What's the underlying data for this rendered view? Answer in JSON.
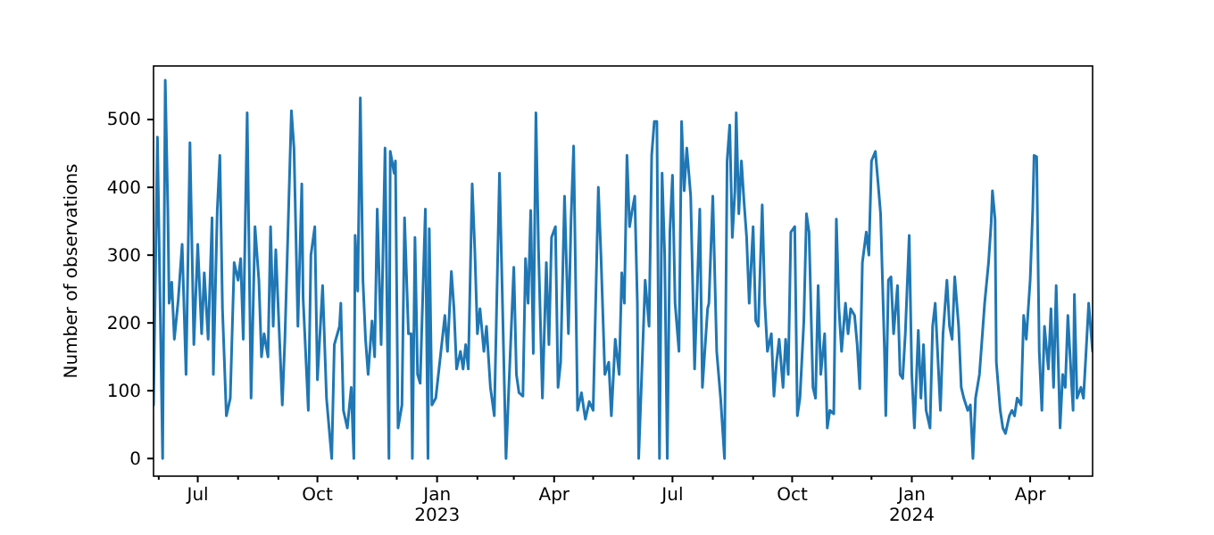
{
  "chart_data": {
    "type": "line",
    "ylabel": "Number of observations",
    "xlim": [
      "2022-05-28",
      "2024-05-19"
    ],
    "ylim": [
      -26,
      579
    ],
    "yticks": [
      0,
      100,
      200,
      300,
      400,
      500
    ],
    "xticks": [
      {
        "value": "2022-06-01",
        "label": null
      },
      {
        "value": "2022-07-01",
        "label": "Jul"
      },
      {
        "value": "2022-08-01",
        "label": null
      },
      {
        "value": "2022-09-01",
        "label": null
      },
      {
        "value": "2022-10-01",
        "label": "Oct"
      },
      {
        "value": "2022-11-01",
        "label": null
      },
      {
        "value": "2022-12-01",
        "label": null
      },
      {
        "value": "2023-01-01",
        "label": "Jan\n2023"
      },
      {
        "value": "2023-02-01",
        "label": null
      },
      {
        "value": "2023-03-01",
        "label": null
      },
      {
        "value": "2023-04-01",
        "label": "Apr"
      },
      {
        "value": "2023-05-01",
        "label": null
      },
      {
        "value": "2023-06-01",
        "label": null
      },
      {
        "value": "2023-07-01",
        "label": "Jul"
      },
      {
        "value": "2023-08-01",
        "label": null
      },
      {
        "value": "2023-09-01",
        "label": null
      },
      {
        "value": "2023-10-01",
        "label": "Oct"
      },
      {
        "value": "2023-11-01",
        "label": null
      },
      {
        "value": "2023-12-01",
        "label": null
      },
      {
        "value": "2024-01-01",
        "label": "Jan\n2024"
      },
      {
        "value": "2024-02-01",
        "label": null
      },
      {
        "value": "2024-03-01",
        "label": null
      },
      {
        "value": "2024-04-01",
        "label": "Apr"
      },
      {
        "value": "2024-05-01",
        "label": null
      }
    ],
    "grid": false,
    "line_style": "solid",
    "series": [
      {
        "color": "#1f77b4",
        "x": [
          "2022-05-28",
          "2022-05-31",
          "2022-06-04",
          "2022-06-06",
          "2022-06-08",
          "2022-06-09",
          "2022-06-11",
          "2022-06-13",
          "2022-06-16",
          "2022-06-19",
          "2022-06-22",
          "2022-06-25",
          "2022-06-28",
          "2022-07-01",
          "2022-07-04",
          "2022-07-06",
          "2022-07-09",
          "2022-07-12",
          "2022-07-13",
          "2022-07-16",
          "2022-07-18",
          "2022-07-20",
          "2022-07-23",
          "2022-07-26",
          "2022-07-29",
          "2022-08-01",
          "2022-08-03",
          "2022-08-05",
          "2022-08-08",
          "2022-08-11",
          "2022-08-14",
          "2022-08-17",
          "2022-08-19",
          "2022-08-21",
          "2022-08-24",
          "2022-08-26",
          "2022-08-28",
          "2022-08-30",
          "2022-09-04",
          "2022-09-06",
          "2022-09-11",
          "2022-09-13",
          "2022-09-16",
          "2022-09-19",
          "2022-09-20",
          "2022-09-24",
          "2022-09-26",
          "2022-09-29",
          "2022-10-01",
          "2022-10-05",
          "2022-10-08",
          "2022-10-12",
          "2022-10-14",
          "2022-10-18",
          "2022-10-19",
          "2022-10-21",
          "2022-10-24",
          "2022-10-27",
          "2022-10-29",
          "2022-10-30",
          "2022-11-01",
          "2022-11-03",
          "2022-11-05",
          "2022-11-07",
          "2022-11-09",
          "2022-11-12",
          "2022-11-14",
          "2022-11-16",
          "2022-11-19",
          "2022-11-22",
          "2022-11-25",
          "2022-11-26",
          "2022-11-29",
          "2022-11-30",
          "2022-12-02",
          "2022-12-05",
          "2022-12-07",
          "2022-12-10",
          "2022-12-12",
          "2022-12-13",
          "2022-12-15",
          "2022-12-17",
          "2022-12-19",
          "2022-12-23",
          "2022-12-25",
          "2022-12-26",
          "2022-12-28",
          "2022-12-31",
          "2023-01-05",
          "2023-01-07",
          "2023-01-09",
          "2023-01-12",
          "2023-01-14",
          "2023-01-16",
          "2023-01-19",
          "2023-01-21",
          "2023-01-23",
          "2023-01-25",
          "2023-01-28",
          "2023-01-30",
          "2023-02-01",
          "2023-02-03",
          "2023-02-06",
          "2023-02-08",
          "2023-02-11",
          "2023-02-14",
          "2023-02-18",
          "2023-02-20",
          "2023-02-23",
          "2023-02-25",
          "2023-03-01",
          "2023-03-03",
          "2023-03-05",
          "2023-03-08",
          "2023-03-10",
          "2023-03-12",
          "2023-03-14",
          "2023-03-16",
          "2023-03-18",
          "2023-03-20",
          "2023-03-23",
          "2023-03-26",
          "2023-03-28",
          "2023-03-30",
          "2023-04-02",
          "2023-04-04",
          "2023-04-06",
          "2023-04-09",
          "2023-04-12",
          "2023-04-14",
          "2023-04-16",
          "2023-04-19",
          "2023-04-22",
          "2023-04-25",
          "2023-04-28",
          "2023-05-01",
          "2023-05-05",
          "2023-05-07",
          "2023-05-10",
          "2023-05-13",
          "2023-05-15",
          "2023-05-18",
          "2023-05-21",
          "2023-05-23",
          "2023-05-25",
          "2023-05-27",
          "2023-05-29",
          "2023-05-31",
          "2023-06-02",
          "2023-06-04",
          "2023-06-05",
          "2023-06-08",
          "2023-06-10",
          "2023-06-13",
          "2023-06-15",
          "2023-06-17",
          "2023-06-19",
          "2023-06-21",
          "2023-06-23",
          "2023-06-25",
          "2023-06-27",
          "2023-06-29",
          "2023-07-01",
          "2023-07-03",
          "2023-07-06",
          "2023-07-08",
          "2023-07-10",
          "2023-07-12",
          "2023-07-15",
          "2023-07-18",
          "2023-07-22",
          "2023-07-24",
          "2023-07-28",
          "2023-07-29",
          "2023-08-01",
          "2023-08-04",
          "2023-08-07",
          "2023-08-10",
          "2023-08-12",
          "2023-08-14",
          "2023-08-16",
          "2023-08-18",
          "2023-08-19",
          "2023-08-21",
          "2023-08-23",
          "2023-08-25",
          "2023-08-27",
          "2023-08-29",
          "2023-09-01",
          "2023-09-03",
          "2023-09-05",
          "2023-09-08",
          "2023-09-10",
          "2023-09-12",
          "2023-09-15",
          "2023-09-17",
          "2023-09-19",
          "2023-09-21",
          "2023-09-24",
          "2023-09-26",
          "2023-09-28",
          "2023-09-30",
          "2023-10-03",
          "2023-10-05",
          "2023-10-07",
          "2023-10-10",
          "2023-10-12",
          "2023-10-14",
          "2023-10-17",
          "2023-10-19",
          "2023-10-21",
          "2023-10-23",
          "2023-10-26",
          "2023-10-28",
          "2023-10-30",
          "2023-11-02",
          "2023-11-04",
          "2023-11-06",
          "2023-11-08",
          "2023-11-11",
          "2023-11-13",
          "2023-11-15",
          "2023-11-18",
          "2023-11-20",
          "2023-11-22",
          "2023-11-24",
          "2023-11-27",
          "2023-11-29",
          "2023-12-01",
          "2023-12-04",
          "2023-12-06",
          "2023-12-08",
          "2023-12-11",
          "2023-12-12",
          "2023-12-14",
          "2023-12-16",
          "2023-12-18",
          "2023-12-21",
          "2023-12-23",
          "2023-12-25",
          "2023-12-27",
          "2023-12-30",
          "2024-01-01",
          "2024-01-03",
          "2024-01-06",
          "2024-01-08",
          "2024-01-10",
          "2024-01-12",
          "2024-01-15",
          "2024-01-17",
          "2024-01-19",
          "2024-01-23",
          "2024-01-25",
          "2024-01-28",
          "2024-01-30",
          "2024-02-01",
          "2024-02-03",
          "2024-02-06",
          "2024-02-08",
          "2024-02-10",
          "2024-02-13",
          "2024-02-15",
          "2024-02-17",
          "2024-02-19",
          "2024-02-22",
          "2024-02-24",
          "2024-02-26",
          "2024-02-29",
          "2024-03-02",
          "2024-03-03",
          "2024-03-05",
          "2024-03-06",
          "2024-03-09",
          "2024-03-11",
          "2024-03-13",
          "2024-03-16",
          "2024-03-18",
          "2024-03-20",
          "2024-03-22",
          "2024-03-25",
          "2024-03-27",
          "2024-03-29",
          "2024-04-01",
          "2024-04-03",
          "2024-04-04",
          "2024-04-06",
          "2024-04-08",
          "2024-04-10",
          "2024-04-12",
          "2024-04-15",
          "2024-04-17",
          "2024-04-19",
          "2024-04-21",
          "2024-04-24",
          "2024-04-26",
          "2024-04-28",
          "2024-04-30",
          "2024-05-03",
          "2024-05-04",
          "2024-05-05",
          "2024-05-07",
          "2024-05-10",
          "2024-05-12",
          "2024-05-14",
          "2024-05-16",
          "2024-05-19"
        ],
        "values": [
          79,
          474,
          0,
          558,
          368,
          229,
          260,
          176,
          234,
          316,
          124,
          466,
          168,
          316,
          184,
          274,
          176,
          355,
          124,
          366,
          447,
          221,
          63,
          89,
          289,
          263,
          295,
          176,
          510,
          89,
          342,
          263,
          150,
          184,
          150,
          342,
          195,
          308,
          79,
          176,
          513,
          458,
          195,
          405,
          237,
          71,
          300,
          342,
          116,
          255,
          89,
          0,
          168,
          195,
          229,
          71,
          45,
          105,
          0,
          329,
          247,
          532,
          263,
          176,
          124,
          203,
          150,
          368,
          168,
          458,
          0,
          453,
          421,
          439,
          45,
          79,
          355,
          184,
          184,
          0,
          326,
          124,
          111,
          368,
          0,
          339,
          79,
          89,
          176,
          211,
          158,
          276,
          221,
          132,
          158,
          132,
          168,
          132,
          405,
          308,
          184,
          221,
          158,
          195,
          105,
          63,
          421,
          255,
          0,
          97,
          282,
          124,
          97,
          92,
          295,
          229,
          366,
          155,
          510,
          308,
          89,
          289,
          168,
          326,
          342,
          105,
          142,
          387,
          184,
          353,
          461,
          71,
          97,
          58,
          84,
          71,
          400,
          300,
          124,
          142,
          63,
          176,
          124,
          274,
          229,
          447,
          342,
          366,
          387,
          229,
          0,
          158,
          263,
          195,
          447,
          497,
          497,
          0,
          421,
          300,
          0,
          334,
          418,
          229,
          158,
          497,
          395,
          458,
          387,
          132,
          368,
          105,
          221,
          229,
          387,
          158,
          89,
          0,
          439,
          492,
          326,
          395,
          510,
          361,
          439,
          379,
          326,
          229,
          342,
          203,
          195,
          374,
          229,
          158,
          184,
          92,
          142,
          176,
          105,
          176,
          124,
          334,
          342,
          63,
          89,
          203,
          361,
          334,
          105,
          89,
          255,
          124,
          184,
          45,
          71,
          66,
          353,
          221,
          158,
          229,
          184,
          221,
          211,
          168,
          103,
          289,
          334,
          300,
          439,
          453,
          408,
          361,
          158,
          63,
          263,
          268,
          184,
          255,
          124,
          118,
          184,
          329,
          124,
          45,
          189,
          89,
          168,
          71,
          45,
          195,
          229,
          71,
          184,
          263,
          195,
          176,
          268,
          195,
          105,
          89,
          71,
          79,
          0,
          89,
          124,
          176,
          229,
          289,
          347,
          395,
          353,
          142,
          71,
          45,
          37,
          63,
          71,
          63,
          89,
          79,
          211,
          176,
          263,
          368,
          447,
          445,
          158,
          71,
          195,
          132,
          221,
          105,
          255,
          45,
          124,
          105,
          211,
          105,
          71,
          242,
          89,
          105,
          89,
          158,
          229,
          158
        ]
      }
    ]
  }
}
